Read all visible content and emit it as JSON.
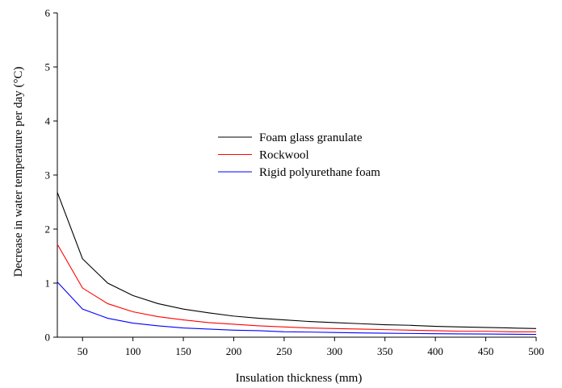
{
  "chart_data": {
    "type": "line",
    "xlabel": "Insulation thickness (mm)",
    "ylabel": "Decrease in water temperature per day (°C)",
    "xlim": [
      25,
      500
    ],
    "ylim": [
      0,
      6
    ],
    "x_ticks": [
      50,
      100,
      150,
      200,
      250,
      300,
      350,
      400,
      450,
      500
    ],
    "y_ticks": [
      0,
      1,
      2,
      3,
      4,
      5,
      6
    ],
    "grid": false,
    "legend_position": "center",
    "x": [
      25,
      50,
      75,
      100,
      125,
      150,
      175,
      200,
      225,
      250,
      275,
      300,
      325,
      350,
      375,
      400,
      425,
      450,
      475,
      500
    ],
    "series": [
      {
        "name": "Foam glass granulate",
        "color": "#000000",
        "values": [
          2.68,
          1.45,
          1.0,
          0.77,
          0.62,
          0.52,
          0.45,
          0.39,
          0.35,
          0.32,
          0.29,
          0.27,
          0.25,
          0.23,
          0.22,
          0.2,
          0.19,
          0.18,
          0.17,
          0.16
        ]
      },
      {
        "name": "Rockwool",
        "color": "#ff0000",
        "values": [
          1.72,
          0.91,
          0.62,
          0.47,
          0.38,
          0.32,
          0.27,
          0.24,
          0.21,
          0.19,
          0.17,
          0.16,
          0.15,
          0.14,
          0.13,
          0.12,
          0.11,
          0.11,
          0.1,
          0.1
        ]
      },
      {
        "name": "Rigid polyurethane foam",
        "color": "#0000ff",
        "values": [
          1.02,
          0.52,
          0.35,
          0.26,
          0.21,
          0.17,
          0.15,
          0.13,
          0.12,
          0.1,
          0.095,
          0.087,
          0.08,
          0.074,
          0.069,
          0.065,
          0.061,
          0.058,
          0.055,
          0.052
        ]
      }
    ]
  }
}
